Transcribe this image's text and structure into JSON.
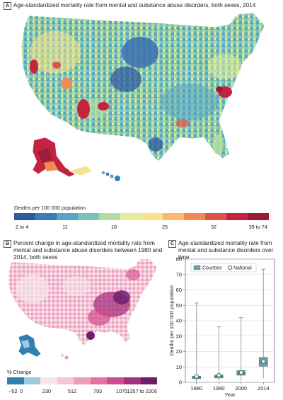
{
  "panel_a": {
    "tag": "A",
    "title": "Age-standardized mortality rate from mental and substance abuse disorders, both sexes, 2014",
    "scale_title": "Deaths per 100 000 population",
    "scale_ticks": [
      "2 to 4",
      "11",
      "18",
      "25",
      "32",
      "39 to 74"
    ],
    "scale_colors": [
      "#2f5b9e",
      "#3b7bb8",
      "#56a6c6",
      "#7cc3b6",
      "#b0dba3",
      "#e4ee9a",
      "#f8e38a",
      "#f9b86a",
      "#f08b55",
      "#e0534b",
      "#c4243f",
      "#9b1b3b"
    ]
  },
  "panel_b": {
    "tag": "B",
    "title": "Percent change in age-standardized mortality rate from mental and substance abuse disorders between 1980 and 2014, both sexes",
    "scale_title": "% Change",
    "scale_ticks": [
      "−52",
      "0",
      "230",
      "512",
      "793",
      "1075",
      "1357 to 2206"
    ],
    "scale_colors": [
      "#2e80b0",
      "#9ec9dd",
      "#f7e6ee",
      "#f4c6d8",
      "#ee9ebd",
      "#e671a0",
      "#cf4b8c",
      "#a6307e",
      "#6e1f6c"
    ]
  },
  "panel_c": {
    "tag": "C",
    "title": "Age-standardized mortality rate from mental and substance disorders over time"
  },
  "chart_data": {
    "type": "box",
    "title": "Age-standardized mortality rate from mental and substance disorders over time",
    "xlabel": "Year",
    "ylabel": "Deaths per 100 000 population",
    "ylim": [
      0,
      80
    ],
    "yticks": [
      0,
      10,
      20,
      30,
      40,
      50,
      60,
      70,
      80
    ],
    "categories": [
      "1980",
      "1990",
      "2000",
      "2014"
    ],
    "legend": {
      "placement": "top",
      "entries": [
        "Counties",
        "National"
      ]
    },
    "series": [
      {
        "name": "Counties",
        "color": "#6d9fa6",
        "boxes": [
          {
            "min": 0.5,
            "q1": 2.3,
            "median": 3.0,
            "q3": 4.0,
            "max": 51.5
          },
          {
            "min": 0.8,
            "q1": 2.8,
            "median": 3.8,
            "q3": 4.8,
            "max": 36.0
          },
          {
            "min": 1.0,
            "q1": 4.6,
            "median": 5.9,
            "q3": 7.6,
            "max": 42.0
          },
          {
            "min": 2.5,
            "q1": 10.4,
            "median": 12.8,
            "q3": 16.2,
            "max": 73.5
          }
        ]
      },
      {
        "name": "National",
        "color": "#ffffff",
        "values": [
          3.8,
          4.6,
          6.4,
          13.5
        ]
      }
    ]
  }
}
